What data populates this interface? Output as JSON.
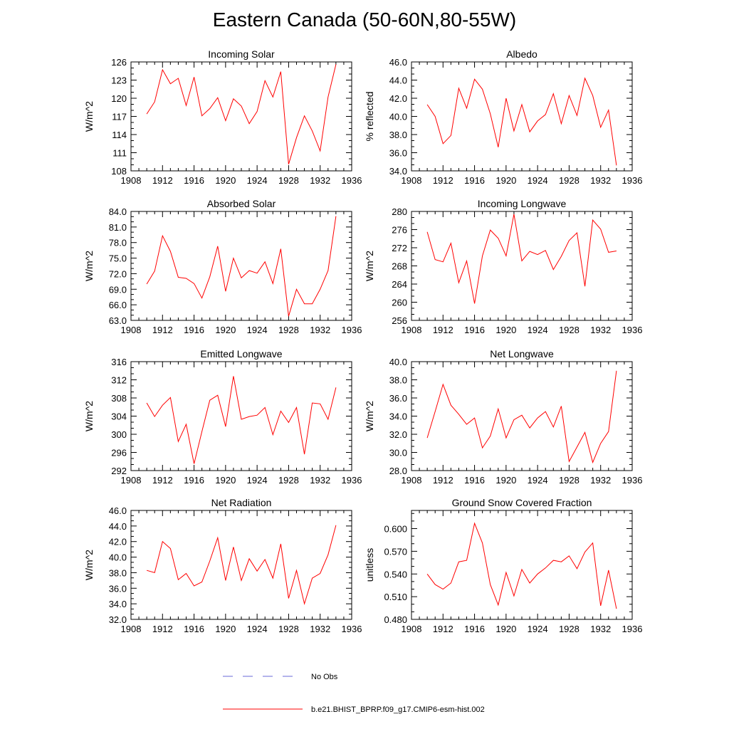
{
  "title": "Eastern Canada (50-60N,80-55W)",
  "colors": {
    "series": "#ff0000",
    "obs": "#6a6ad8",
    "axis": "#000000"
  },
  "legend": {
    "obs_label": "No Obs",
    "model_label": "b.e21.BHIST_BPRP.f09_g17.CMIP6-esm-hist.002"
  },
  "chart_data": [
    {
      "type": "line",
      "title": "Incoming Solar",
      "xlabel": "",
      "ylabel": "W/m^2",
      "xlim": [
        1908,
        1936
      ],
      "ylim": [
        108,
        126
      ],
      "yticks": [
        "108",
        "111",
        "114",
        "117",
        "120",
        "123",
        "126"
      ],
      "xticks": [
        "1908",
        "1912",
        "1916",
        "1920",
        "1924",
        "1928",
        "1932",
        "1936"
      ],
      "x": [
        1910,
        1911,
        1912,
        1913,
        1914,
        1915,
        1916,
        1917,
        1918,
        1919,
        1920,
        1921,
        1922,
        1923,
        1924,
        1925,
        1926,
        1927,
        1928,
        1929,
        1930,
        1931,
        1932,
        1933,
        1934
      ],
      "values": [
        117.4,
        119.4,
        124.7,
        122.4,
        123.3,
        118.8,
        123.5,
        117.1,
        118.3,
        120.1,
        116.3,
        119.9,
        118.7,
        115.8,
        117.8,
        122.9,
        120.2,
        124.4,
        109.1,
        113.5,
        117.1,
        114.6,
        111.3,
        120.2,
        125.6
      ]
    },
    {
      "type": "line",
      "title": "Albedo",
      "xlabel": "",
      "ylabel": "% reflected",
      "xlim": [
        1908,
        1936
      ],
      "ylim": [
        34,
        46
      ],
      "yticks": [
        "34.0",
        "36.0",
        "38.0",
        "40.0",
        "42.0",
        "44.0",
        "46.0"
      ],
      "xticks": [
        "1908",
        "1912",
        "1916",
        "1920",
        "1924",
        "1928",
        "1932",
        "1936"
      ],
      "x": [
        1910,
        1911,
        1912,
        1913,
        1914,
        1915,
        1916,
        1917,
        1918,
        1919,
        1920,
        1921,
        1922,
        1923,
        1924,
        1925,
        1926,
        1927,
        1928,
        1929,
        1930,
        1931,
        1932,
        1933,
        1934
      ],
      "values": [
        41.3,
        40.0,
        37.0,
        37.9,
        43.1,
        40.9,
        44.1,
        43.0,
        40.3,
        36.6,
        42.0,
        38.4,
        41.3,
        38.3,
        39.5,
        40.2,
        42.5,
        39.2,
        42.3,
        40.1,
        44.2,
        42.3,
        38.8,
        40.7,
        34.6
      ]
    },
    {
      "type": "line",
      "title": "Absorbed Solar",
      "xlabel": "",
      "ylabel": "W/m^2",
      "xlim": [
        1908,
        1936
      ],
      "ylim": [
        63,
        84
      ],
      "yticks": [
        "63.0",
        "66.0",
        "69.0",
        "72.0",
        "75.0",
        "78.0",
        "81.0",
        "84.0"
      ],
      "xticks": [
        "1908",
        "1912",
        "1916",
        "1920",
        "1924",
        "1928",
        "1932",
        "1936"
      ],
      "x": [
        1910,
        1911,
        1912,
        1913,
        1914,
        1915,
        1916,
        1917,
        1918,
        1919,
        1920,
        1921,
        1922,
        1923,
        1924,
        1925,
        1926,
        1927,
        1928,
        1929,
        1930,
        1931,
        1932,
        1933,
        1934
      ],
      "values": [
        70.0,
        72.5,
        79.3,
        76.3,
        71.3,
        71.1,
        70.1,
        67.3,
        71.4,
        77.3,
        68.6,
        75.0,
        71.2,
        72.6,
        72.1,
        74.3,
        70.1,
        76.8,
        63.8,
        69.0,
        66.2,
        66.2,
        69.0,
        72.6,
        83.1
      ]
    },
    {
      "type": "line",
      "title": "Incoming Longwave",
      "xlabel": "",
      "ylabel": "W/m^2",
      "xlim": [
        1908,
        1936
      ],
      "ylim": [
        256,
        280
      ],
      "yticks": [
        "256",
        "260",
        "264",
        "268",
        "272",
        "276",
        "280"
      ],
      "xticks": [
        "1908",
        "1912",
        "1916",
        "1920",
        "1924",
        "1928",
        "1932",
        "1936"
      ],
      "x": [
        1910,
        1911,
        1912,
        1913,
        1914,
        1915,
        1916,
        1917,
        1918,
        1919,
        1920,
        1921,
        1922,
        1923,
        1924,
        1925,
        1926,
        1927,
        1928,
        1929,
        1930,
        1931,
        1932,
        1933,
        1934
      ],
      "values": [
        275.5,
        269.4,
        268.9,
        273.0,
        264.3,
        269.1,
        259.7,
        270.2,
        275.9,
        274.1,
        270.2,
        279.4,
        269.1,
        271.2,
        270.5,
        271.4,
        267.2,
        270.1,
        273.6,
        275.3,
        263.5,
        278.1,
        276.1,
        271.0,
        271.3
      ]
    },
    {
      "type": "line",
      "title": "Emitted Longwave",
      "xlabel": "",
      "ylabel": "W/m^2",
      "xlim": [
        1908,
        1936
      ],
      "ylim": [
        292,
        316
      ],
      "yticks": [
        "292",
        "296",
        "300",
        "304",
        "308",
        "312",
        "316"
      ],
      "xticks": [
        "1908",
        "1912",
        "1916",
        "1920",
        "1924",
        "1928",
        "1932",
        "1936"
      ],
      "x": [
        1910,
        1911,
        1912,
        1913,
        1914,
        1915,
        1916,
        1917,
        1918,
        1919,
        1920,
        1921,
        1922,
        1923,
        1924,
        1925,
        1926,
        1927,
        1928,
        1929,
        1930,
        1931,
        1932,
        1933,
        1934
      ],
      "values": [
        306.9,
        303.9,
        306.4,
        308.1,
        298.4,
        302.2,
        293.5,
        300.6,
        307.5,
        308.6,
        301.7,
        312.8,
        303.3,
        303.9,
        304.2,
        305.9,
        299.9,
        305.1,
        302.6,
        305.9,
        295.6,
        306.9,
        306.7,
        303.3,
        310.3
      ]
    },
    {
      "type": "line",
      "title": "Net Longwave",
      "xlabel": "",
      "ylabel": "W/m^2",
      "xlim": [
        1908,
        1936
      ],
      "ylim": [
        28,
        40
      ],
      "yticks": [
        "28.0",
        "30.0",
        "32.0",
        "34.0",
        "36.0",
        "38.0",
        "40.0"
      ],
      "xticks": [
        "1908",
        "1912",
        "1916",
        "1920",
        "1924",
        "1928",
        "1932",
        "1936"
      ],
      "x": [
        1910,
        1911,
        1912,
        1913,
        1914,
        1915,
        1916,
        1917,
        1918,
        1919,
        1920,
        1921,
        1922,
        1923,
        1924,
        1925,
        1926,
        1927,
        1928,
        1929,
        1930,
        1931,
        1932,
        1933,
        1934
      ],
      "values": [
        31.6,
        34.5,
        37.5,
        35.2,
        34.2,
        33.1,
        33.8,
        30.5,
        31.8,
        34.8,
        31.6,
        33.6,
        34.1,
        32.7,
        33.8,
        34.5,
        32.8,
        35.1,
        29.0,
        30.6,
        32.2,
        28.9,
        31.0,
        32.3,
        39.0
      ]
    },
    {
      "type": "line",
      "title": "Net Radiation",
      "xlabel": "",
      "ylabel": "W/m^2",
      "xlim": [
        1908,
        1936
      ],
      "ylim": [
        32,
        46
      ],
      "yticks": [
        "32.0",
        "34.0",
        "36.0",
        "38.0",
        "40.0",
        "42.0",
        "44.0",
        "46.0"
      ],
      "xticks": [
        "1908",
        "1912",
        "1916",
        "1920",
        "1924",
        "1928",
        "1932",
        "1936"
      ],
      "x": [
        1910,
        1911,
        1912,
        1913,
        1914,
        1915,
        1916,
        1917,
        1918,
        1919,
        1920,
        1921,
        1922,
        1923,
        1924,
        1925,
        1926,
        1927,
        1928,
        1929,
        1930,
        1931,
        1932,
        1933,
        1934
      ],
      "values": [
        38.3,
        38.0,
        42.0,
        41.1,
        37.1,
        37.9,
        36.3,
        36.8,
        39.5,
        42.5,
        37.0,
        41.3,
        37.0,
        39.8,
        38.2,
        39.7,
        37.3,
        41.7,
        34.7,
        38.3,
        34.0,
        37.3,
        37.9,
        40.3,
        44.1
      ]
    },
    {
      "type": "line",
      "title": "Ground Snow Covered Fraction",
      "xlabel": "",
      "ylabel": "unitless",
      "xlim": [
        1908,
        1936
      ],
      "ylim": [
        0.48,
        0.624
      ],
      "yticks": [
        "0.480",
        "0.510",
        "0.540",
        "0.570",
        "0.600"
      ],
      "xticks": [
        "1908",
        "1912",
        "1916",
        "1920",
        "1924",
        "1928",
        "1932",
        "1936"
      ],
      "x": [
        1910,
        1911,
        1912,
        1913,
        1914,
        1915,
        1916,
        1917,
        1918,
        1919,
        1920,
        1921,
        1922,
        1923,
        1924,
        1925,
        1926,
        1927,
        1928,
        1929,
        1930,
        1931,
        1932,
        1933,
        1934
      ],
      "values": [
        0.54,
        0.526,
        0.52,
        0.528,
        0.556,
        0.558,
        0.607,
        0.581,
        0.526,
        0.499,
        0.542,
        0.511,
        0.546,
        0.528,
        0.54,
        0.548,
        0.558,
        0.556,
        0.564,
        0.547,
        0.569,
        0.581,
        0.498,
        0.545,
        0.494
      ]
    }
  ]
}
